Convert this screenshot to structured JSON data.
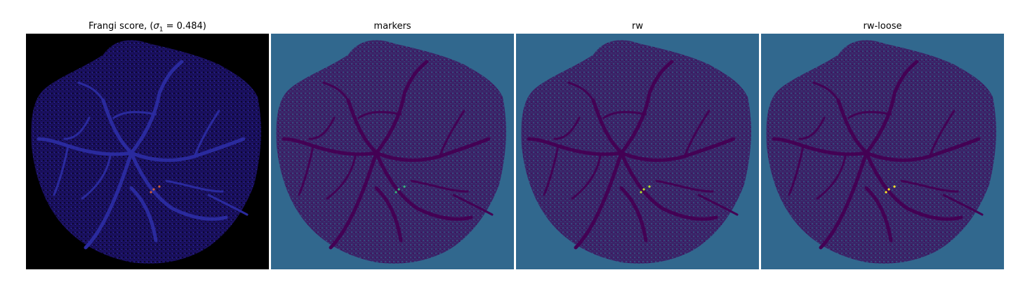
{
  "panels": [
    {
      "title_prefix": "Frangi score, (",
      "title_sigma": "σ",
      "title_sub": "1",
      "title_suffix": " = 0.484)",
      "background": "#000000",
      "blob": "#1a1060",
      "vessel": "#2a2a9e",
      "accent": "#d0603a"
    },
    {
      "title": "markers",
      "background": "#31688e",
      "blob": "#3b2468",
      "vessel": "#440154",
      "accent": "#35b779"
    },
    {
      "title": "rw",
      "background": "#31688e",
      "blob": "#3b2468",
      "vessel": "#440154",
      "accent": "#b5de2b"
    },
    {
      "title": "rw-loose",
      "background": "#31688e",
      "blob": "#3b2468",
      "vessel": "#440154",
      "accent": "#fde725"
    }
  ]
}
